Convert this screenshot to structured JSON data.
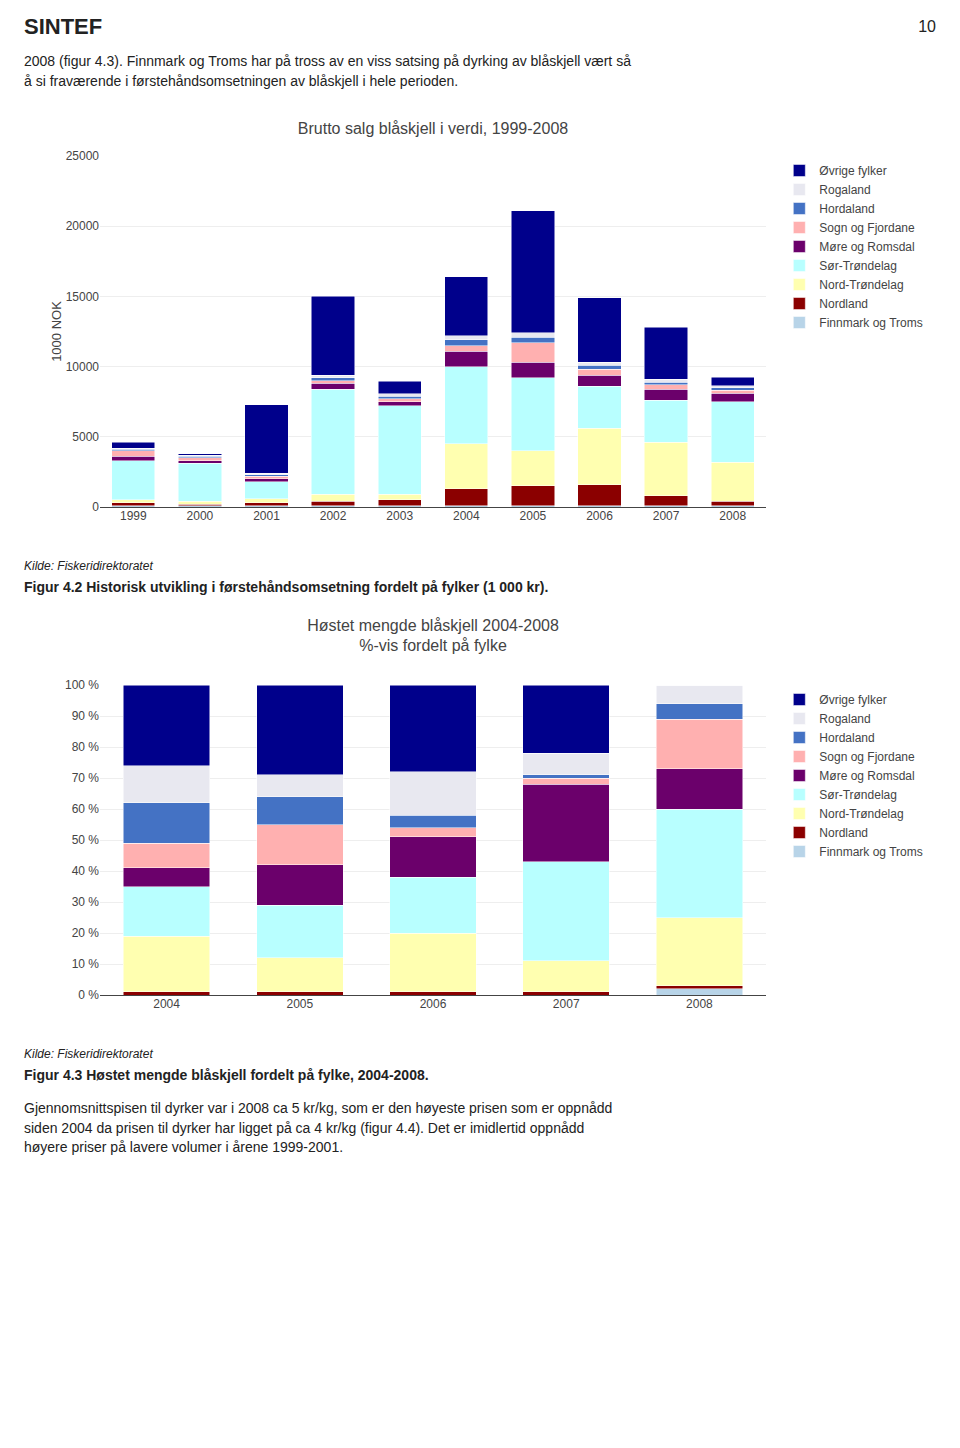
{
  "chart_data": [
    {
      "type": "bar",
      "stacked": true,
      "title": "Brutto salg blåskjell i verdi, 1999-2008",
      "ylabel": "1000 NOK",
      "categories": [
        "1999",
        "2000",
        "2001",
        "2002",
        "2003",
        "2004",
        "2005",
        "2006",
        "2007",
        "2008"
      ],
      "series": [
        {
          "name": "Finnmark og Troms",
          "color": "#b8d4e8",
          "values": [
            100,
            100,
            100,
            100,
            100,
            100,
            100,
            100,
            100,
            100
          ]
        },
        {
          "name": "Nordland",
          "color": "#8b0000",
          "values": [
            200,
            100,
            200,
            300,
            400,
            1200,
            1400,
            1500,
            700,
            300
          ]
        },
        {
          "name": "Nord-Trøndelag",
          "color": "#ffffb0",
          "values": [
            200,
            200,
            300,
            500,
            400,
            3200,
            2500,
            4000,
            3800,
            2800
          ]
        },
        {
          "name": "Sør-Trøndelag",
          "color": "#b8ffff",
          "values": [
            2800,
            2700,
            1200,
            7500,
            6300,
            5500,
            5200,
            3000,
            3000,
            4300
          ]
        },
        {
          "name": "Møre og Romsdal",
          "color": "#6b006b",
          "values": [
            300,
            200,
            200,
            400,
            300,
            1100,
            1100,
            800,
            800,
            600
          ]
        },
        {
          "name": "Sogn og Fjordane",
          "color": "#ffb0b0",
          "values": [
            400,
            200,
            200,
            200,
            200,
            400,
            1400,
            400,
            300,
            200
          ]
        },
        {
          "name": "Hordaland",
          "color": "#4472c4",
          "values": [
            100,
            100,
            100,
            200,
            200,
            400,
            400,
            300,
            200,
            200
          ]
        },
        {
          "name": "Rogaland",
          "color": "#e8e8f0",
          "values": [
            100,
            100,
            100,
            200,
            150,
            300,
            300,
            200,
            200,
            150
          ]
        },
        {
          "name": "Øvrige fylker",
          "color": "#00008b",
          "values": [
            400,
            100,
            4900,
            5600,
            900,
            4200,
            8700,
            4600,
            3700,
            600
          ]
        }
      ],
      "ylim": [
        0,
        25000
      ],
      "yticks": [
        0,
        5000,
        10000,
        15000,
        20000,
        25000
      ],
      "grid": true,
      "legend": "right",
      "annotations": [
        "SINTEF",
        "10",
        "2008 (figur 4.3). Finnmark og Troms har på tross av en viss satsing på dyrking av blåskjell vært så\nå si fraværende i førstehåndsomsetningen av blåskjell i hele perioden.",
        "Kilde: Fiskeridirektoratet",
        "Figur 4.2 Historisk utvikling i førstehåndsomsetning fordelt på fylker (1 000 kr)."
      ]
    },
    {
      "type": "bar",
      "stacked": true,
      "title": "Høstet mengde blåskjell 2004-2008",
      "subtitle": "%-vis fordelt på fylke",
      "categories": [
        "2004",
        "2005",
        "2006",
        "2007",
        "2008"
      ],
      "series": [
        {
          "name": "Finnmark og Troms",
          "color": "#b8d4e8",
          "values": [
            0,
            0,
            0,
            0,
            2
          ]
        },
        {
          "name": "Nordland",
          "color": "#8b0000",
          "values": [
            1,
            1,
            1,
            1,
            1
          ]
        },
        {
          "name": "Nord-Trøndelag",
          "color": "#ffffb0",
          "values": [
            18,
            11,
            19,
            10,
            22
          ]
        },
        {
          "name": "Sør-Trøndelag",
          "color": "#b8ffff",
          "values": [
            16,
            17,
            18,
            32,
            35
          ]
        },
        {
          "name": "Møre og Romsdal",
          "color": "#6b006b",
          "values": [
            6,
            13,
            13,
            25,
            13
          ]
        },
        {
          "name": "Sogn og Fjordane",
          "color": "#ffb0b0",
          "values": [
            8,
            13,
            3,
            2,
            16
          ]
        },
        {
          "name": "Hordaland",
          "color": "#4472c4",
          "values": [
            13,
            9,
            4,
            1,
            5
          ]
        },
        {
          "name": "Rogaland",
          "color": "#e8e8f0",
          "values": [
            12,
            7,
            14,
            7,
            6
          ]
        },
        {
          "name": "Øvrige fylker",
          "color": "#00008b",
          "values": [
            26,
            29,
            28,
            22,
            0
          ]
        }
      ],
      "ylim": [
        0,
        100
      ],
      "yticks": [
        {
          "value": 0,
          "label": "0 %"
        },
        {
          "value": 10,
          "label": "10 %"
        },
        {
          "value": 20,
          "label": "20 %"
        },
        {
          "value": 30,
          "label": "30 %"
        },
        {
          "value": 40,
          "label": "40 %"
        },
        {
          "value": 50,
          "label": "50 %"
        },
        {
          "value": 60,
          "label": "60 %"
        },
        {
          "value": 70,
          "label": "70 %"
        },
        {
          "value": 80,
          "label": "80 %"
        },
        {
          "value": 90,
          "label": "90 %"
        },
        {
          "value": 100,
          "label": "100 %"
        }
      ],
      "grid": true,
      "legend": "right",
      "annotations": [
        "Kilde: Fiskeridirektoratet",
        "Figur 4.3 Høstet mengde blåskjell fordelt på fylke, 2004-2008.",
        "Gjennomsnittspisen til dyrker var i 2008 ca 5 kr/kg, som er den høyeste prisen som er oppnådd\nsiden 2004 da prisen til dyrker har ligget på ca 4 kr/kg (figur 4.4). Det er imidlertid oppnådd\nhøyere priser på lavere volumer i årene 1999-2001."
      ]
    }
  ]
}
